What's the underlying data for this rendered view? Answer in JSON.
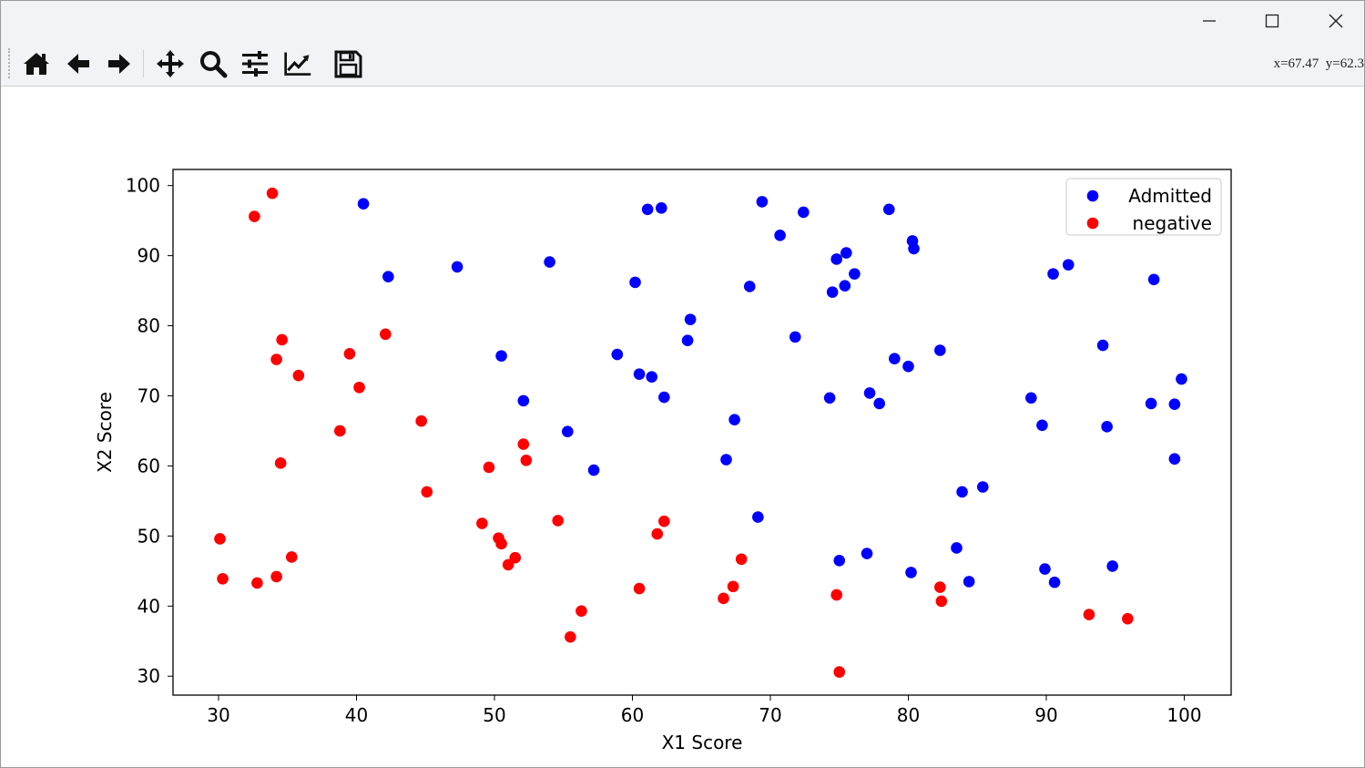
{
  "window": {
    "minimize_icon": "minimize-icon",
    "maximize_icon": "maximize-icon",
    "close_icon": "close-icon"
  },
  "toolbar": {
    "tools": [
      {
        "name": "home-icon"
      },
      {
        "name": "back-arrow-icon"
      },
      {
        "name": "forward-arrow-icon"
      },
      {
        "name": "pan-icon"
      },
      {
        "name": "zoom-icon"
      },
      {
        "name": "subplots-config-icon"
      },
      {
        "name": "edit-axis-icon"
      },
      {
        "name": "save-icon"
      }
    ],
    "coords": "x=67.47  y=62.3"
  },
  "chart_data": {
    "type": "scatter",
    "xlabel": "X1 Score",
    "ylabel": "X2 Score",
    "xlim": [
      26.7,
      103.4
    ],
    "ylim": [
      27.3,
      102.3
    ],
    "xticks": [
      30,
      40,
      50,
      60,
      70,
      80,
      90,
      100
    ],
    "yticks": [
      30,
      40,
      50,
      60,
      70,
      80,
      90,
      100
    ],
    "legend_position": "top-right",
    "colors": {
      "Admitted": "#0000ff",
      "negative": "#ff0000"
    },
    "series": [
      {
        "name": "Admitted",
        "points": [
          [
            40.5,
            97.4
          ],
          [
            42.3,
            87.0
          ],
          [
            47.3,
            88.4
          ],
          [
            50.5,
            75.7
          ],
          [
            52.1,
            69.3
          ],
          [
            54.0,
            89.1
          ],
          [
            55.3,
            64.9
          ],
          [
            57.2,
            59.4
          ],
          [
            58.9,
            75.9
          ],
          [
            60.2,
            86.2
          ],
          [
            60.5,
            73.1
          ],
          [
            61.1,
            96.6
          ],
          [
            61.4,
            72.7
          ],
          [
            62.1,
            96.8
          ],
          [
            62.3,
            69.8
          ],
          [
            64.0,
            77.9
          ],
          [
            64.2,
            80.9
          ],
          [
            66.8,
            60.9
          ],
          [
            67.4,
            66.6
          ],
          [
            68.5,
            85.6
          ],
          [
            69.1,
            52.7
          ],
          [
            69.4,
            97.7
          ],
          [
            70.7,
            92.9
          ],
          [
            71.8,
            78.4
          ],
          [
            72.4,
            96.2
          ],
          [
            74.3,
            69.7
          ],
          [
            74.5,
            84.8
          ],
          [
            74.8,
            89.5
          ],
          [
            75.0,
            46.5
          ],
          [
            75.4,
            85.7
          ],
          [
            75.5,
            90.4
          ],
          [
            76.1,
            87.4
          ],
          [
            77.0,
            47.5
          ],
          [
            77.2,
            70.4
          ],
          [
            77.9,
            68.9
          ],
          [
            78.6,
            96.6
          ],
          [
            79.0,
            75.3
          ],
          [
            80.0,
            74.2
          ],
          [
            80.2,
            44.8
          ],
          [
            80.3,
            92.1
          ],
          [
            80.4,
            91.0
          ],
          [
            82.3,
            76.5
          ],
          [
            83.5,
            48.3
          ],
          [
            83.9,
            56.3
          ],
          [
            84.4,
            43.5
          ],
          [
            85.4,
            57.0
          ],
          [
            88.9,
            69.7
          ],
          [
            89.7,
            65.8
          ],
          [
            89.9,
            45.3
          ],
          [
            90.5,
            87.4
          ],
          [
            90.6,
            43.4
          ],
          [
            91.6,
            88.7
          ],
          [
            94.1,
            77.2
          ],
          [
            94.4,
            65.6
          ],
          [
            94.8,
            45.7
          ],
          [
            97.6,
            68.9
          ],
          [
            97.8,
            86.6
          ],
          [
            99.3,
            68.8
          ],
          [
            99.3,
            61.0
          ],
          [
            99.8,
            72.4
          ]
        ]
      },
      {
        "name": "negative",
        "points": [
          [
            30.1,
            49.6
          ],
          [
            30.3,
            43.9
          ],
          [
            32.6,
            95.6
          ],
          [
            32.8,
            43.3
          ],
          [
            33.9,
            98.9
          ],
          [
            34.2,
            75.2
          ],
          [
            34.2,
            44.2
          ],
          [
            34.5,
            60.4
          ],
          [
            34.6,
            78.0
          ],
          [
            35.3,
            47.0
          ],
          [
            35.8,
            72.9
          ],
          [
            38.8,
            65.0
          ],
          [
            39.5,
            76.0
          ],
          [
            40.2,
            71.2
          ],
          [
            42.1,
            78.8
          ],
          [
            44.7,
            66.4
          ],
          [
            45.1,
            56.3
          ],
          [
            49.1,
            51.8
          ],
          [
            49.6,
            59.8
          ],
          [
            50.3,
            49.7
          ],
          [
            50.5,
            48.9
          ],
          [
            51.0,
            45.9
          ],
          [
            51.5,
            46.9
          ],
          [
            52.1,
            63.1
          ],
          [
            52.3,
            60.8
          ],
          [
            54.6,
            52.2
          ],
          [
            55.5,
            35.6
          ],
          [
            56.3,
            39.3
          ],
          [
            60.5,
            42.5
          ],
          [
            61.8,
            50.3
          ],
          [
            62.3,
            52.1
          ],
          [
            66.6,
            41.1
          ],
          [
            67.3,
            42.8
          ],
          [
            67.9,
            46.7
          ],
          [
            74.8,
            41.6
          ],
          [
            75.0,
            30.6
          ],
          [
            82.3,
            42.7
          ],
          [
            82.4,
            40.7
          ],
          [
            93.1,
            38.8
          ],
          [
            95.9,
            38.2
          ]
        ]
      }
    ]
  }
}
